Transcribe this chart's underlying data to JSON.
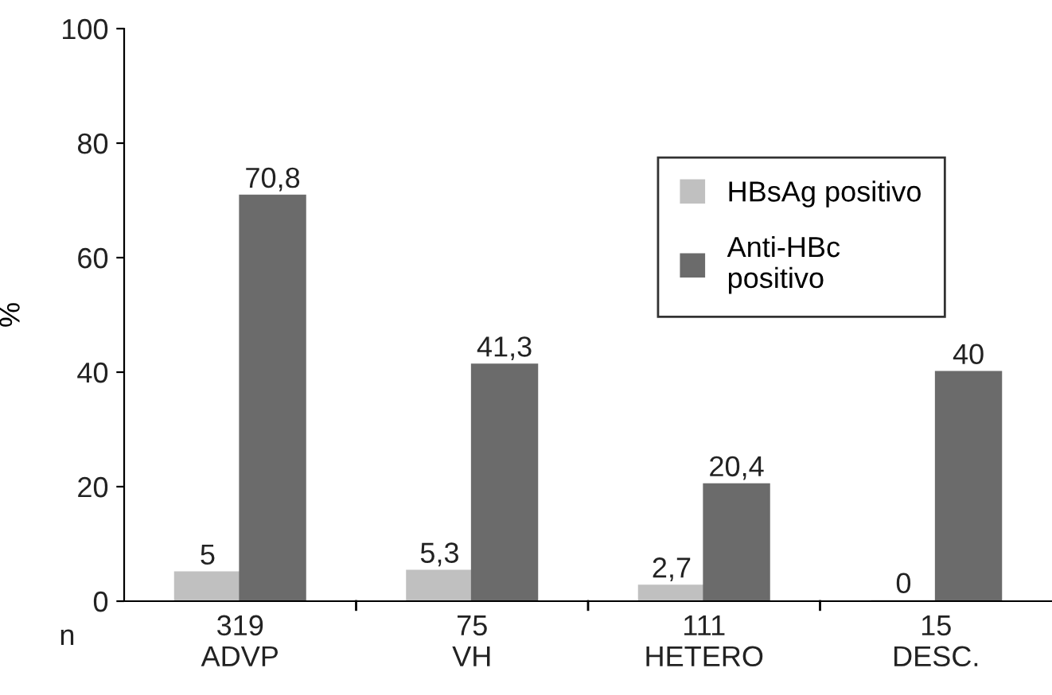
{
  "chart_data": {
    "type": "bar",
    "ylabel": "%",
    "categories": [
      "319\nADVP",
      "75\nVH",
      "111\nHETERO",
      "15\nDESC."
    ],
    "series": [
      {
        "name": "HBsAg positivo",
        "color": "#c0c0c0",
        "values": [
          5,
          5.3,
          2.7,
          0
        ],
        "value_labels": [
          "5",
          "5,3",
          "2,7",
          "0"
        ]
      },
      {
        "name": "Anti-HBc\npositivo",
        "color": "#6b6b6b",
        "values": [
          70.8,
          41.3,
          20.4,
          40
        ],
        "value_labels": [
          "70,8",
          "41,3",
          "20,4",
          "40"
        ]
      }
    ],
    "ylim": [
      0,
      100
    ],
    "yticks": [
      0,
      20,
      40,
      60,
      80,
      100
    ],
    "annotations": [
      "n"
    ],
    "legend": "top right",
    "grid": false
  }
}
